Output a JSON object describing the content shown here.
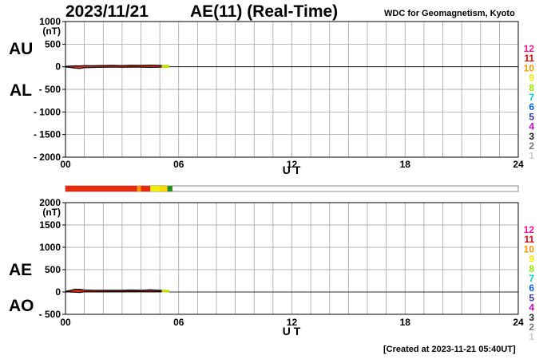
{
  "header": {
    "date": "2023/11/21",
    "title": "AE(11) (Real-Time)",
    "source": "WDC for Geomagnetism, Kyoto"
  },
  "footer": {
    "created": "[Created at 2023-11-21 05:40UT]"
  },
  "labels": {
    "au": "AU",
    "al": "AL",
    "ae": "AE",
    "ao": "AO"
  },
  "station_levels": {
    "labels": [
      "12",
      "11",
      "10",
      "9",
      "8",
      "7",
      "6",
      "5",
      "4",
      "3",
      "2",
      "1"
    ],
    "colors": [
      "#ff1493",
      "#ee0000",
      "#ff9900",
      "#f0f000",
      "#99ee00",
      "#00cccc",
      "#0066ff",
      "#3333bb",
      "#cc00cc",
      "#222222",
      "#777777",
      "#cccccc"
    ]
  },
  "chart_data": [
    {
      "type": "area",
      "panel": "AU/AL",
      "ylabel": "(nT)",
      "xlabel": "U T",
      "ylim": [
        -2000,
        1000
      ],
      "yticks": [
        "1000",
        "500",
        "0",
        "- 500",
        "- 1000",
        "- 1500",
        "- 2000"
      ],
      "ytick_values": [
        1000,
        500,
        0,
        -500,
        -1000,
        -1500,
        -2000
      ],
      "xlim": [
        0,
        24
      ],
      "xticks": [
        "00",
        "06",
        "12",
        "18",
        "24"
      ],
      "xtick_values": [
        0,
        6,
        12,
        18,
        24
      ],
      "grid": true,
      "series": [
        {
          "x": [
            0,
            0.25,
            0.5,
            0.75,
            1,
            1.5,
            2,
            2.5,
            3,
            3.5,
            4,
            4.5,
            5,
            5.5
          ],
          "values": [
            10,
            15,
            20,
            18,
            25,
            22,
            28,
            30,
            25,
            32,
            30,
            35,
            30,
            25
          ]
        },
        {
          "x": [
            0,
            0.25,
            0.5,
            0.75,
            1,
            1.5,
            2,
            2.5,
            3,
            3.5,
            4,
            4.5,
            5,
            5.5
          ],
          "values": [
            -5,
            -15,
            -30,
            -40,
            -20,
            -15,
            -12,
            -10,
            -12,
            -8,
            -10,
            -15,
            -10,
            -5
          ]
        }
      ]
    },
    {
      "type": "area",
      "panel": "AE/AO",
      "ylabel": "(nT)",
      "xlabel": "U T",
      "ylim": [
        -500,
        2000
      ],
      "yticks": [
        "2000",
        "1500",
        "1000",
        "500",
        "0",
        "- 500"
      ],
      "ytick_values": [
        2000,
        1500,
        1000,
        500,
        0,
        -500
      ],
      "xlim": [
        0,
        24
      ],
      "xticks": [
        "00",
        "06",
        "12",
        "18",
        "24"
      ],
      "xtick_values": [
        0,
        6,
        12,
        18,
        24
      ],
      "grid": true,
      "series": [
        {
          "x": [
            0,
            0.25,
            0.5,
            0.75,
            1,
            1.5,
            2,
            2.5,
            3,
            3.5,
            4,
            4.5,
            5,
            5.5
          ],
          "values": [
            15,
            35,
            60,
            60,
            45,
            40,
            40,
            40,
            38,
            45,
            40,
            50,
            40,
            30
          ]
        },
        {
          "x": [
            0,
            0.25,
            0.5,
            0.75,
            1,
            1.5,
            2,
            2.5,
            3,
            3.5,
            4,
            4.5,
            5,
            5.5
          ],
          "values": [
            3,
            0,
            -5,
            -10,
            3,
            4,
            8,
            10,
            7,
            12,
            10,
            10,
            10,
            10
          ]
        }
      ]
    }
  ],
  "station_bar": {
    "x_end": 5.67,
    "segments": [
      {
        "start": 0,
        "end": 3.8,
        "color": "#e8290b"
      },
      {
        "start": 3.8,
        "end": 4.0,
        "color": "#ff9900"
      },
      {
        "start": 4.0,
        "end": 4.5,
        "color": "#e8290b"
      },
      {
        "start": 4.5,
        "end": 5.0,
        "color": "#f0f000"
      },
      {
        "start": 5.0,
        "end": 5.4,
        "color": "#ffd700"
      },
      {
        "start": 5.4,
        "end": 5.67,
        "color": "#228b22"
      }
    ]
  }
}
